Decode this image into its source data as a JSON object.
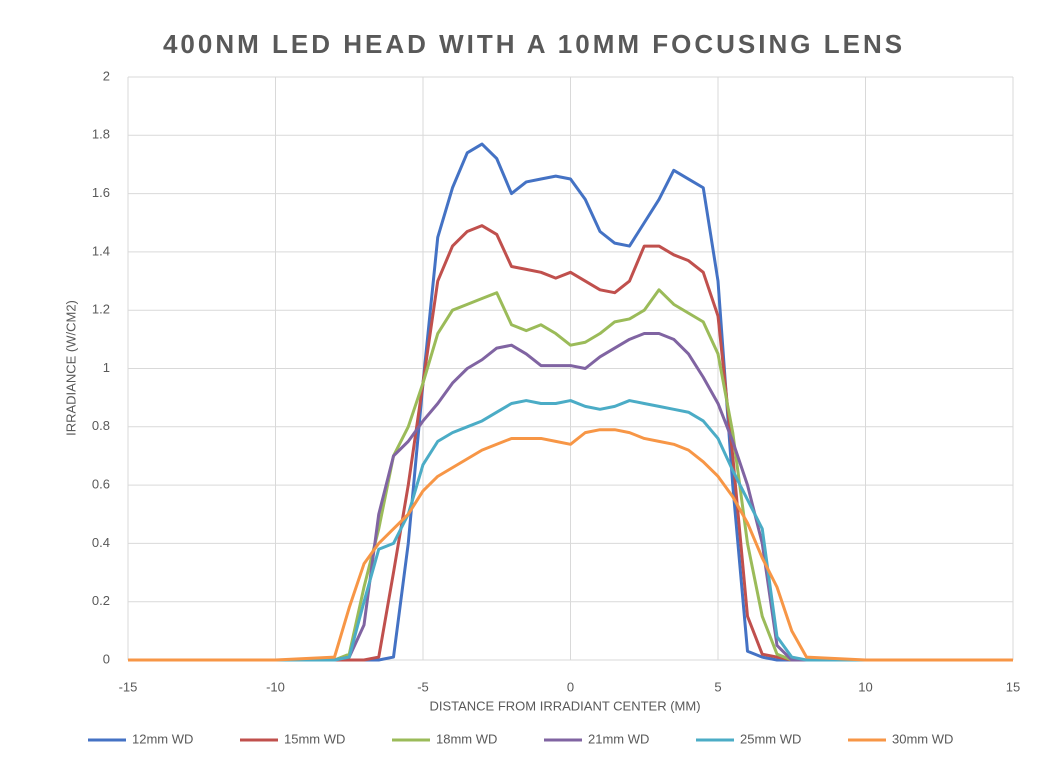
{
  "chart_data": {
    "type": "line",
    "title": "400NM LED HEAD WITH A 10MM FOCUSING LENS",
    "x_label": "DISTANCE FROM IRRADIANT CENTER (MM)",
    "y_label": "IRRADIANCE (W/CM2)",
    "x": [
      -15,
      -10,
      -8,
      -7.5,
      -7,
      -6.5,
      -6,
      -5.5,
      -5,
      -4.5,
      -4,
      -3.5,
      -3,
      -2.5,
      -2,
      -1.5,
      -1,
      -0.5,
      0,
      0.5,
      1,
      1.5,
      2,
      2.5,
      3,
      3.5,
      4,
      4.5,
      5,
      5.5,
      6,
      6.5,
      7,
      7.5,
      8,
      10,
      15
    ],
    "series": [
      {
        "name": "12mm WD",
        "color": "#4472c4",
        "values": [
          0,
          0,
          0,
          0,
          0,
          0,
          0.01,
          0.4,
          0.95,
          1.45,
          1.62,
          1.74,
          1.77,
          1.72,
          1.6,
          1.64,
          1.65,
          1.66,
          1.65,
          1.58,
          1.47,
          1.43,
          1.42,
          1.5,
          1.58,
          1.68,
          1.65,
          1.62,
          1.3,
          0.6,
          0.03,
          0.01,
          0,
          0,
          0,
          0,
          0
        ]
      },
      {
        "name": "15mm WD",
        "color": "#c0504d",
        "values": [
          0,
          0,
          0,
          0,
          0,
          0.01,
          0.3,
          0.6,
          0.95,
          1.3,
          1.42,
          1.47,
          1.49,
          1.46,
          1.35,
          1.34,
          1.33,
          1.31,
          1.33,
          1.3,
          1.27,
          1.26,
          1.3,
          1.42,
          1.42,
          1.39,
          1.37,
          1.33,
          1.18,
          0.7,
          0.15,
          0.02,
          0.01,
          0,
          0,
          0,
          0
        ]
      },
      {
        "name": "18mm WD",
        "color": "#9bbb59",
        "values": [
          0,
          0,
          0,
          0.02,
          0.25,
          0.45,
          0.7,
          0.8,
          0.95,
          1.12,
          1.2,
          1.22,
          1.24,
          1.26,
          1.15,
          1.13,
          1.15,
          1.12,
          1.08,
          1.09,
          1.12,
          1.16,
          1.17,
          1.2,
          1.27,
          1.22,
          1.19,
          1.16,
          1.05,
          0.78,
          0.4,
          0.15,
          0.02,
          0,
          0,
          0,
          0
        ]
      },
      {
        "name": "21mm WD",
        "color": "#8064a2",
        "values": [
          0,
          0,
          0,
          0.01,
          0.12,
          0.5,
          0.7,
          0.75,
          0.82,
          0.88,
          0.95,
          1.0,
          1.03,
          1.07,
          1.08,
          1.05,
          1.01,
          1.01,
          1.01,
          1.0,
          1.04,
          1.07,
          1.1,
          1.12,
          1.12,
          1.1,
          1.05,
          0.97,
          0.88,
          0.75,
          0.6,
          0.4,
          0.05,
          0,
          0,
          0,
          0
        ]
      },
      {
        "name": "25mm WD",
        "color": "#4bacc6",
        "values": [
          0,
          0,
          0,
          0.01,
          0.2,
          0.38,
          0.4,
          0.5,
          0.67,
          0.75,
          0.78,
          0.8,
          0.82,
          0.85,
          0.88,
          0.89,
          0.88,
          0.88,
          0.89,
          0.87,
          0.86,
          0.87,
          0.89,
          0.88,
          0.87,
          0.86,
          0.85,
          0.82,
          0.76,
          0.65,
          0.55,
          0.45,
          0.08,
          0.01,
          0,
          0,
          0
        ]
      },
      {
        "name": "30mm WD",
        "color": "#f79646",
        "values": [
          0,
          0,
          0.01,
          0.18,
          0.33,
          0.4,
          0.45,
          0.5,
          0.58,
          0.63,
          0.66,
          0.69,
          0.72,
          0.74,
          0.76,
          0.76,
          0.76,
          0.75,
          0.74,
          0.78,
          0.79,
          0.79,
          0.78,
          0.76,
          0.75,
          0.74,
          0.72,
          0.68,
          0.63,
          0.56,
          0.47,
          0.35,
          0.25,
          0.1,
          0.01,
          0,
          0
        ]
      }
    ],
    "xlim": [
      -15,
      15
    ],
    "xticks": [
      -15,
      -10,
      -5,
      0,
      5,
      10,
      15
    ],
    "ylim": [
      0,
      2
    ],
    "yticks": [
      0,
      0.2,
      0.4,
      0.6,
      0.8,
      1,
      1.2,
      1.4,
      1.6,
      1.8,
      2
    ],
    "grid": true,
    "legend": "bottom"
  }
}
